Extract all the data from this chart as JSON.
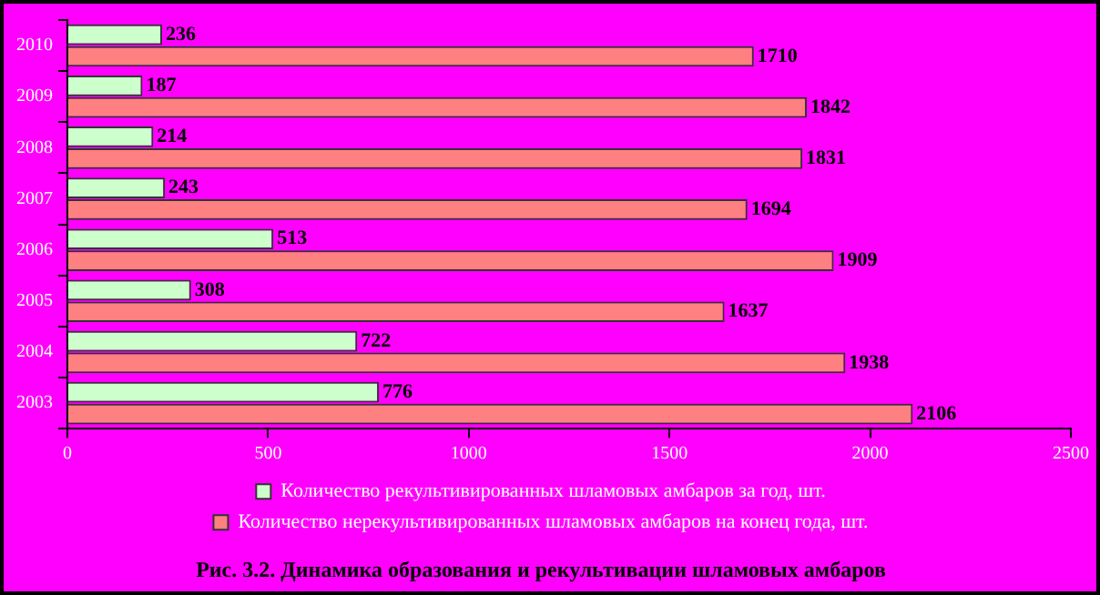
{
  "chart_data": {
    "type": "bar",
    "orientation": "horizontal",
    "title": "Рис. 3.2. Динамика образования и рекультивации шламовых амбаров",
    "categories": [
      "2010",
      "2009",
      "2008",
      "2007",
      "2006",
      "2005",
      "2004",
      "2003"
    ],
    "series": [
      {
        "name": "Количество рекультивированных шламовых амбаров за год, шт.",
        "color": "#ccffcc",
        "values": [
          236,
          187,
          214,
          243,
          513,
          308,
          722,
          776
        ]
      },
      {
        "name": "Количество нерекультивированных шламовых амбаров на конец года, шт.",
        "color": "#ff8080",
        "values": [
          1710,
          1842,
          1831,
          1694,
          1909,
          1637,
          1938,
          2106
        ]
      }
    ],
    "xlim": [
      0,
      2500
    ],
    "xticks": [
      0,
      500,
      1000,
      1500,
      2000,
      2500
    ],
    "grid": false,
    "legend": "bottom",
    "data_labels": true
  }
}
